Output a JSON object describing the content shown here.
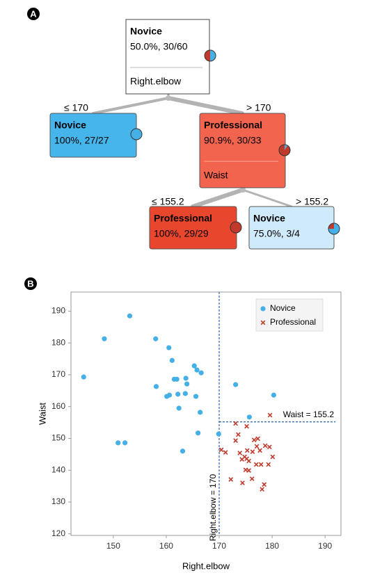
{
  "panels": [
    "A",
    "B"
  ],
  "tree": {
    "nodes": [
      {
        "class": "Novice",
        "stats": "50.0%, 30/60",
        "split": "Right.elbow",
        "novice_share": 50,
        "color": "#ffffff"
      },
      {
        "class": "Novice",
        "stats": "100%, 27/27",
        "novice_share": 100,
        "color": "#45b5ec"
      },
      {
        "class": "Professional",
        "stats": "90.9%, 30/33",
        "split": "Waist",
        "novice_share": 9.1,
        "color": "#f3644f"
      },
      {
        "class": "Professional",
        "stats": "100%, 29/29",
        "novice_share": 0,
        "color": "#e8472e"
      },
      {
        "class": "Novice",
        "stats": "75.0%, 3/4",
        "novice_share": 75,
        "color": "#cfeafb"
      }
    ],
    "edges": [
      "≤ 170",
      "> 170",
      "≤ 155.2",
      "> 155.2"
    ]
  },
  "chart_data": {
    "type": "scatter",
    "xlabel": "Right.elbow",
    "ylabel": "Waist",
    "xlim": [
      142,
      193
    ],
    "ylim": [
      119.5,
      196
    ],
    "xticks": [
      150,
      160,
      170,
      180,
      190
    ],
    "yticks": [
      120,
      130,
      140,
      150,
      160,
      170,
      180,
      190
    ],
    "legend": "upper right",
    "series": [
      {
        "name": "Novice",
        "color": "#45b0e6",
        "marker": "circle",
        "x": [
          144.4,
          148.3,
          153.1,
          150.9,
          152.2,
          158.0,
          158.1,
          160.5,
          161.1,
          160.1,
          160.6,
          161.5,
          162.0,
          162.2,
          162.4,
          163.6,
          163.9,
          163.7,
          163.1,
          165.3,
          165.8,
          166.6,
          165.6,
          166.4,
          166.0,
          169.9,
          173.1,
          175.7,
          180.3
        ],
        "y": [
          169.3,
          181.3,
          188.5,
          148.6,
          148.6,
          181.3,
          166.3,
          178.5,
          174.5,
          163.2,
          163.6,
          168.6,
          168.6,
          163.9,
          159.5,
          164.1,
          167.1,
          168.9,
          146.0,
          172.8,
          171.5,
          170.6,
          163.2,
          158.2,
          151.7,
          151.4,
          166.9,
          156.7,
          163.6
        ]
      },
      {
        "name": "Professional",
        "color": "#c0392b",
        "marker": "x",
        "x": [
          179.6,
          173.1,
          175.2,
          173.6,
          170.4,
          171.2,
          173.1,
          173.9,
          174.8,
          175.2,
          175.6,
          174.3,
          175.3,
          176.3,
          177.1,
          177.7,
          178.7,
          179.5,
          180.1,
          179.3,
          175.6,
          177.0,
          177.9,
          175.0,
          172.2,
          174.4,
          178.5,
          178.1,
          176.2,
          176.6,
          177.3
        ],
        "y": [
          157.3,
          154.7,
          153.8,
          151.2,
          146.4,
          145.6,
          149.3,
          145.4,
          144.2,
          143.6,
          142.9,
          143.4,
          146.2,
          145.8,
          147.5,
          146.2,
          147.7,
          147.3,
          144.2,
          141.8,
          139.9,
          141.8,
          141.8,
          140.1,
          137.1,
          136.0,
          135.5,
          134.0,
          137.3,
          149.5,
          149.9
        ]
      }
    ],
    "annotations": [
      {
        "text": "Right.elbow = 170",
        "x": 170
      },
      {
        "text": "Waist = 155.2",
        "y": 155.2
      }
    ]
  }
}
